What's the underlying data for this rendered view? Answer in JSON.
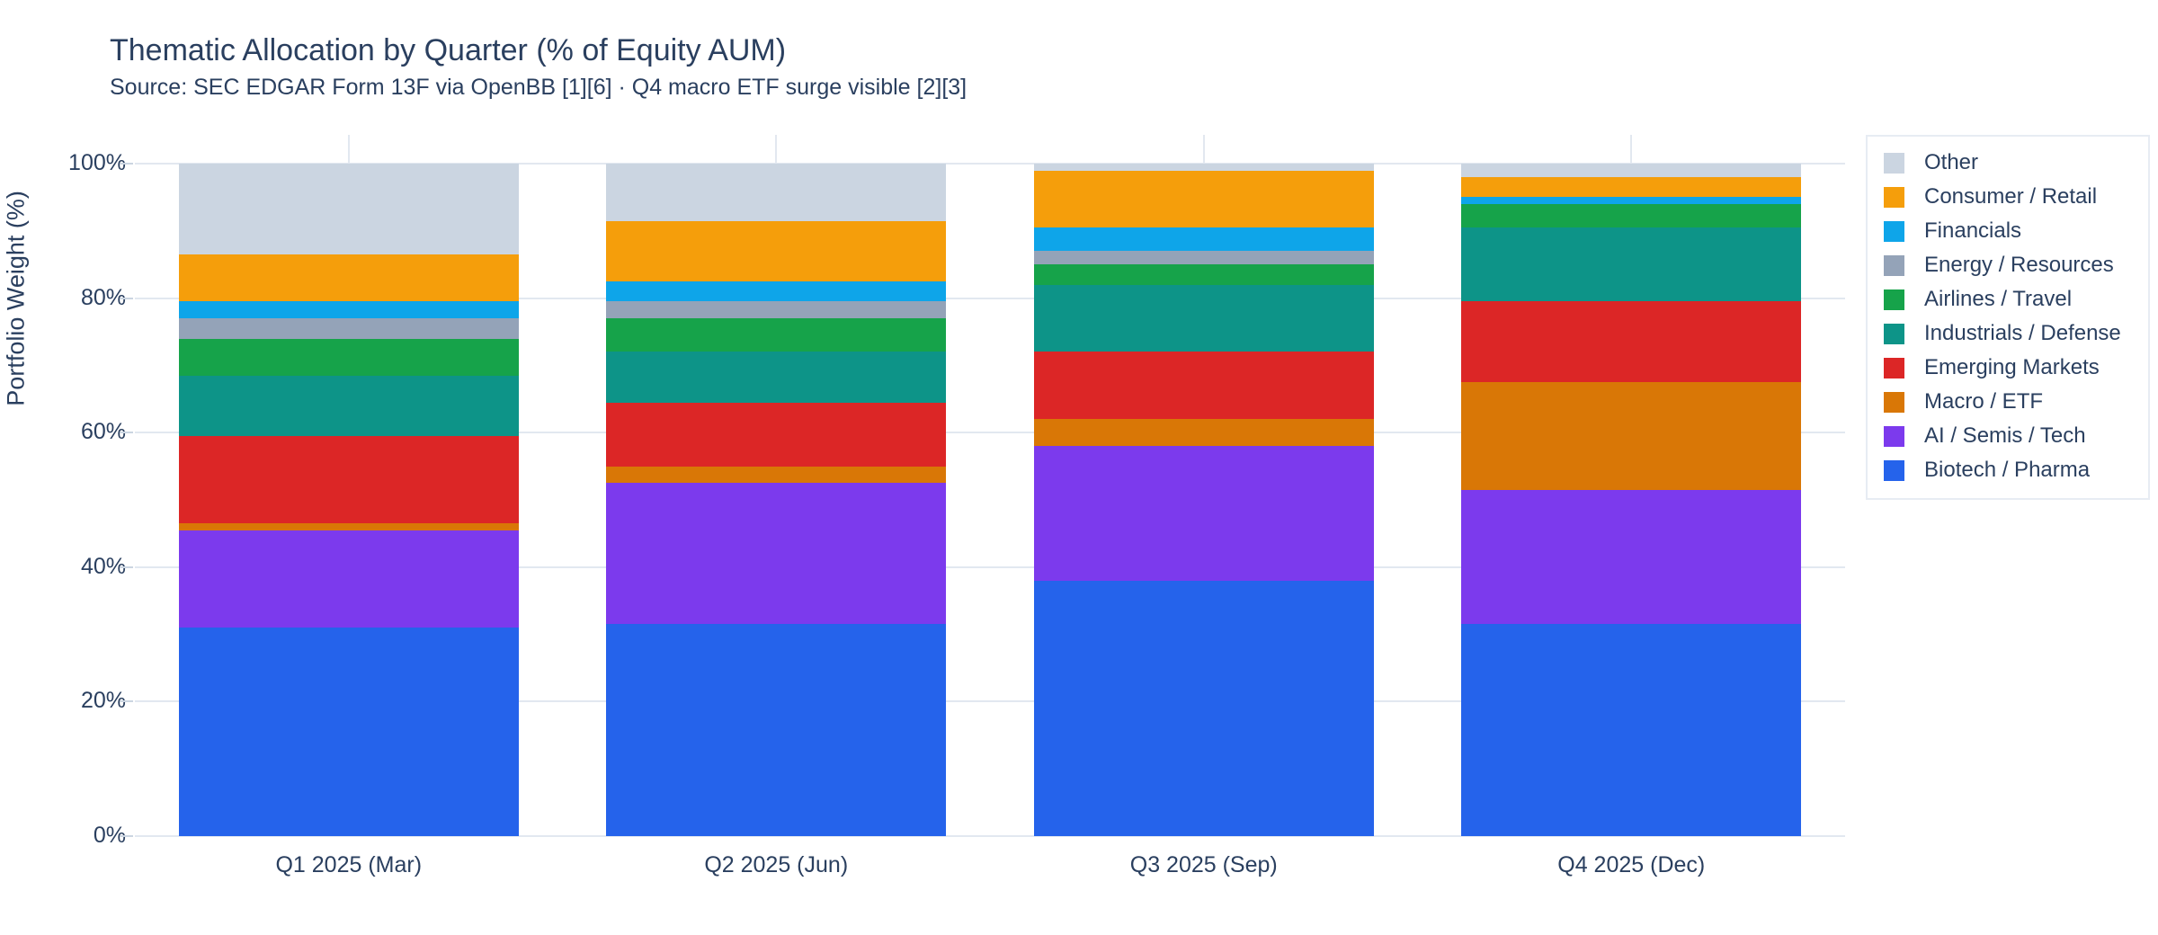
{
  "chart_data": {
    "type": "bar",
    "stacked": true,
    "title": "Thematic Allocation by Quarter (% of Equity AUM)",
    "subtitle": "Source: SEC EDGAR Form 13F via OpenBB [1][6] · Q4 macro ETF surge visible [2][3]",
    "categories": [
      "Q1 2025 (Mar)",
      "Q2 2025 (Jun)",
      "Q3 2025 (Sep)",
      "Q4 2025 (Dec)"
    ],
    "ylabel": "Portfolio Weight (%)",
    "ylim": [
      0,
      100
    ],
    "yticks": [
      0,
      20,
      40,
      60,
      80,
      100
    ],
    "ytick_labels": [
      "0%",
      "20%",
      "40%",
      "60%",
      "80%",
      "100%"
    ],
    "grid": true,
    "legend_position": "top-right-outside",
    "legend_order": "reversed (top of legend = top of stack: Other first, Biotech / Pharma last)",
    "series": [
      {
        "name": "Biotech / Pharma",
        "color": "#2563eb",
        "values": [
          31,
          31.5,
          38,
          31.5
        ]
      },
      {
        "name": "AI / Semis / Tech",
        "color": "#7c3aed",
        "values": [
          14.5,
          21,
          20,
          20
        ]
      },
      {
        "name": "Macro / ETF",
        "color": "#d97706",
        "values": [
          1,
          2.5,
          4,
          16
        ]
      },
      {
        "name": "Emerging Markets",
        "color": "#dc2626",
        "values": [
          13,
          9.5,
          10,
          12
        ]
      },
      {
        "name": "Industrials / Defense",
        "color": "#0d9488",
        "values": [
          9,
          7.5,
          10,
          11
        ]
      },
      {
        "name": "Airlines / Travel",
        "color": "#16a34a",
        "values": [
          5.5,
          5,
          3,
          3.5
        ]
      },
      {
        "name": "Energy / Resources",
        "color": "#94a3b8",
        "values": [
          3,
          2.5,
          2,
          0
        ]
      },
      {
        "name": "Financials",
        "color": "#0ea5e9",
        "values": [
          2.5,
          3,
          3.5,
          1
        ]
      },
      {
        "name": "Consumer / Retail",
        "color": "#f59e0b",
        "values": [
          7,
          9,
          8.5,
          3
        ]
      },
      {
        "name": "Other",
        "color": "#cbd5e1",
        "values": [
          13.5,
          8.5,
          1,
          2
        ]
      }
    ],
    "colors": {
      "text": "#2a3f5f",
      "gridline": "#e2e8f0",
      "background": "#ffffff",
      "legend_border": "#e7ecf3"
    }
  }
}
